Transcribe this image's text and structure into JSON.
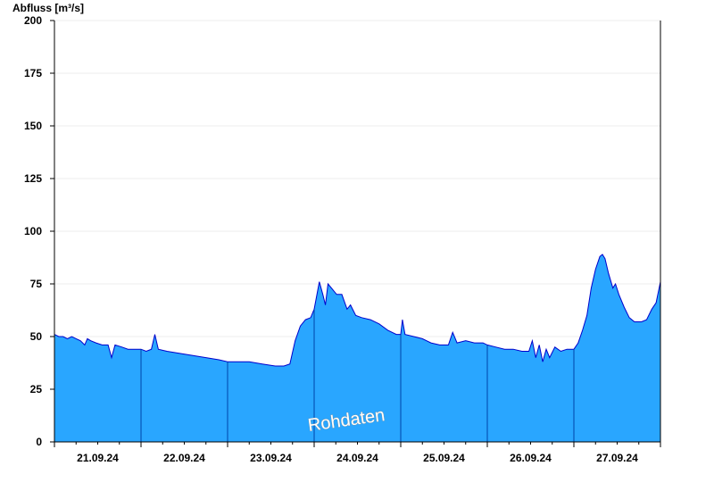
{
  "chart_data": {
    "type": "area",
    "ylabel": "Abfluss [m³/s]",
    "ylim": [
      0,
      200
    ],
    "yticks": [
      0,
      25,
      50,
      75,
      100,
      125,
      150,
      175,
      200
    ],
    "x_range": [
      "2024-09-20T12:00",
      "2024-09-27T12:00"
    ],
    "xtick_labels": [
      "21.09.24",
      "22.09.24",
      "23.09.24",
      "24.09.24",
      "25.09.24",
      "26.09.24",
      "27.09.24"
    ],
    "grid": true,
    "watermark": "Rohdaten",
    "colors": {
      "fill": "#29a6ff",
      "line": "#0000cc",
      "separator": "#0044aa"
    },
    "series": [
      {
        "values": [
          [
            0.0,
            51
          ],
          [
            0.05,
            50
          ],
          [
            0.1,
            50
          ],
          [
            0.15,
            49
          ],
          [
            0.2,
            50
          ],
          [
            0.25,
            49
          ],
          [
            0.3,
            48
          ],
          [
            0.35,
            46
          ],
          [
            0.38,
            49
          ],
          [
            0.42,
            48
          ],
          [
            0.48,
            47
          ],
          [
            0.55,
            46
          ],
          [
            0.62,
            46
          ],
          [
            0.66,
            40
          ],
          [
            0.7,
            46
          ],
          [
            0.78,
            45
          ],
          [
            0.85,
            44
          ],
          [
            0.95,
            44
          ],
          [
            1.0,
            44
          ],
          [
            1.06,
            43
          ],
          [
            1.12,
            44
          ],
          [
            1.16,
            51
          ],
          [
            1.2,
            44
          ],
          [
            1.3,
            43
          ],
          [
            1.45,
            42
          ],
          [
            1.6,
            41
          ],
          [
            1.75,
            40
          ],
          [
            1.9,
            39
          ],
          [
            2.0,
            38
          ],
          [
            2.1,
            38
          ],
          [
            2.25,
            38
          ],
          [
            2.4,
            37
          ],
          [
            2.55,
            36
          ],
          [
            2.65,
            36
          ],
          [
            2.72,
            37
          ],
          [
            2.78,
            48
          ],
          [
            2.84,
            55
          ],
          [
            2.9,
            58
          ],
          [
            2.96,
            59
          ],
          [
            3.0,
            63
          ],
          [
            3.06,
            76
          ],
          [
            3.1,
            70
          ],
          [
            3.13,
            65
          ],
          [
            3.16,
            75
          ],
          [
            3.2,
            73
          ],
          [
            3.26,
            70
          ],
          [
            3.32,
            70
          ],
          [
            3.38,
            63
          ],
          [
            3.42,
            65
          ],
          [
            3.48,
            60
          ],
          [
            3.55,
            59
          ],
          [
            3.65,
            58
          ],
          [
            3.75,
            56
          ],
          [
            3.85,
            53
          ],
          [
            3.95,
            51
          ],
          [
            4.0,
            51
          ],
          [
            4.02,
            58
          ],
          [
            4.05,
            51
          ],
          [
            4.15,
            50
          ],
          [
            4.25,
            49
          ],
          [
            4.35,
            47
          ],
          [
            4.45,
            46
          ],
          [
            4.5,
            46
          ],
          [
            4.55,
            46
          ],
          [
            4.6,
            52
          ],
          [
            4.65,
            47
          ],
          [
            4.75,
            48
          ],
          [
            4.85,
            47
          ],
          [
            4.95,
            47
          ],
          [
            5.0,
            46
          ],
          [
            5.1,
            45
          ],
          [
            5.2,
            44
          ],
          [
            5.3,
            44
          ],
          [
            5.4,
            43
          ],
          [
            5.48,
            43
          ],
          [
            5.52,
            48
          ],
          [
            5.56,
            40
          ],
          [
            5.6,
            46
          ],
          [
            5.64,
            38
          ],
          [
            5.68,
            44
          ],
          [
            5.72,
            40
          ],
          [
            5.78,
            45
          ],
          [
            5.85,
            43
          ],
          [
            5.92,
            44
          ],
          [
            6.0,
            44
          ],
          [
            6.05,
            47
          ],
          [
            6.1,
            53
          ],
          [
            6.15,
            60
          ],
          [
            6.2,
            73
          ],
          [
            6.25,
            82
          ],
          [
            6.3,
            88
          ],
          [
            6.33,
            89
          ],
          [
            6.36,
            87
          ],
          [
            6.4,
            80
          ],
          [
            6.45,
            73
          ],
          [
            6.48,
            75
          ],
          [
            6.52,
            70
          ],
          [
            6.58,
            64
          ],
          [
            6.64,
            59
          ],
          [
            6.7,
            57
          ],
          [
            6.78,
            57
          ],
          [
            6.84,
            58
          ],
          [
            6.9,
            63
          ],
          [
            6.95,
            66
          ],
          [
            7.0,
            76
          ]
        ]
      }
    ]
  }
}
